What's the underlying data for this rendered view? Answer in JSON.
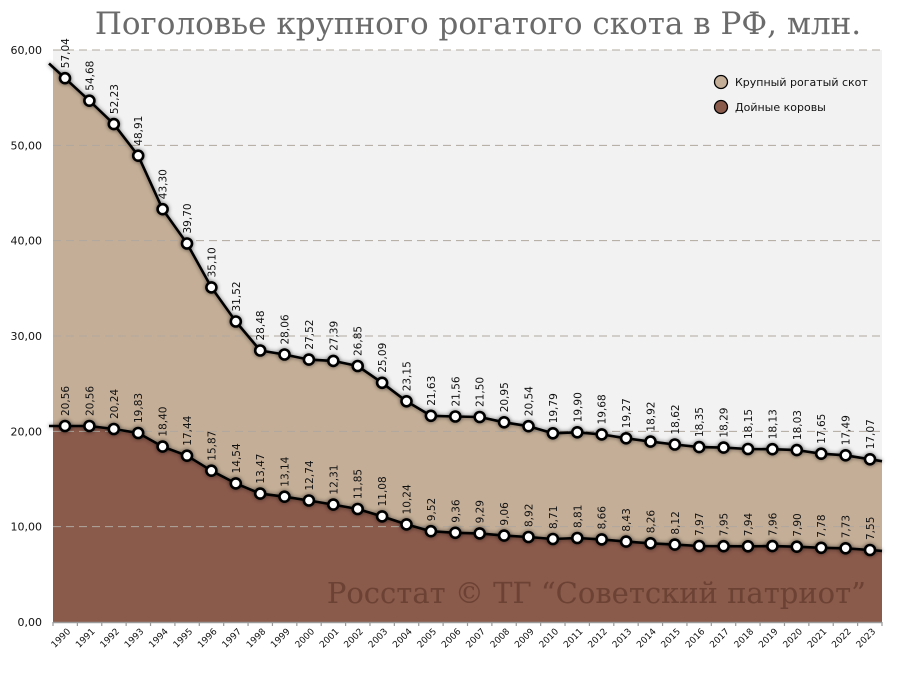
{
  "chart_data": {
    "type": "area",
    "title": "Поголовье крупного рогатого скота в РФ, млн.",
    "watermark": "Росстат © ТГ “Советский патриот”",
    "xlabel": "",
    "ylabel": "",
    "ylim": [
      0,
      60
    ],
    "yticks": [
      "0,00",
      "10,00",
      "20,00",
      "30,00",
      "40,00",
      "50,00",
      "60,00"
    ],
    "grid": true,
    "legend_position": "top-right",
    "categories": [
      "1990",
      "1991",
      "1992",
      "1993",
      "1994",
      "1995",
      "1996",
      "1997",
      "1998",
      "1999",
      "2000",
      "2001",
      "2002",
      "2003",
      "2004",
      "2005",
      "2006",
      "2007",
      "2008",
      "2009",
      "2010",
      "2011",
      "2012",
      "2013",
      "2014",
      "2015",
      "2016",
      "2017",
      "2018",
      "2019",
      "2020",
      "2021",
      "2022",
      "2023"
    ],
    "series": [
      {
        "name": "Крупный рогатый скот",
        "color": "#c4ae97",
        "values": [
          57.04,
          54.68,
          52.23,
          48.91,
          43.3,
          39.7,
          35.1,
          31.52,
          28.48,
          28.06,
          27.52,
          27.39,
          26.85,
          25.09,
          23.15,
          21.63,
          21.56,
          21.5,
          20.95,
          20.54,
          19.79,
          19.9,
          19.68,
          19.27,
          18.92,
          18.62,
          18.35,
          18.29,
          18.15,
          18.13,
          18.03,
          17.65,
          17.49,
          17.07
        ]
      },
      {
        "name": "Дойные коровы",
        "color": "#8a5a4b",
        "values": [
          20.56,
          20.56,
          20.24,
          19.83,
          18.4,
          17.44,
          15.87,
          14.54,
          13.47,
          13.14,
          12.74,
          12.31,
          11.85,
          11.08,
          10.24,
          9.52,
          9.36,
          9.29,
          9.06,
          8.92,
          8.71,
          8.81,
          8.66,
          8.43,
          8.26,
          8.12,
          7.97,
          7.95,
          7.94,
          7.96,
          7.9,
          7.78,
          7.73,
          7.55
        ]
      }
    ],
    "colors": {
      "plot_background": "#f2f2f2",
      "grid": "#b0a89e",
      "line": "#000000",
      "marker_fill": "#ffffff"
    }
  },
  "legend": {
    "items": [
      {
        "label": "Крупный рогатый скот",
        "color": "#c4ae97"
      },
      {
        "label": "Дойные коровы",
        "color": "#8a5a4b"
      }
    ]
  }
}
